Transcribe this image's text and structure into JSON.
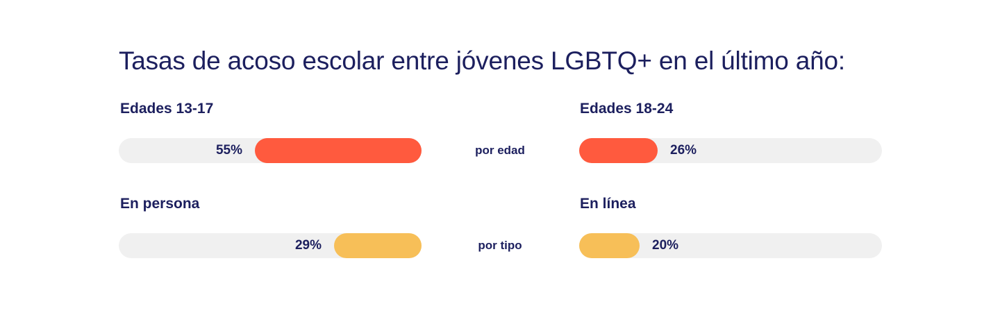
{
  "chart_data": {
    "type": "bar",
    "title": "Tasas de acoso escolar entre jóvenes LGBTQ+ en el último año:",
    "unit": "%",
    "groups": [
      {
        "name": "por edad",
        "color": "#ff5a3e",
        "items": [
          {
            "label": "Edades 13-17",
            "value": 55,
            "value_label": "55%",
            "direction": "right-to-left"
          },
          {
            "label": "Edades 18-24",
            "value": 26,
            "value_label": "26%",
            "direction": "left-to-right"
          }
        ]
      },
      {
        "name": "por tipo",
        "color": "#f7bf58",
        "items": [
          {
            "label": "En persona",
            "value": 29,
            "value_label": "29%",
            "direction": "right-to-left"
          },
          {
            "label": "En línea",
            "value": 20,
            "value_label": "20%",
            "direction": "left-to-right"
          }
        ]
      }
    ],
    "track_color": "#f0f0f0",
    "text_color": "#1c1f5e",
    "max_value": 100
  }
}
